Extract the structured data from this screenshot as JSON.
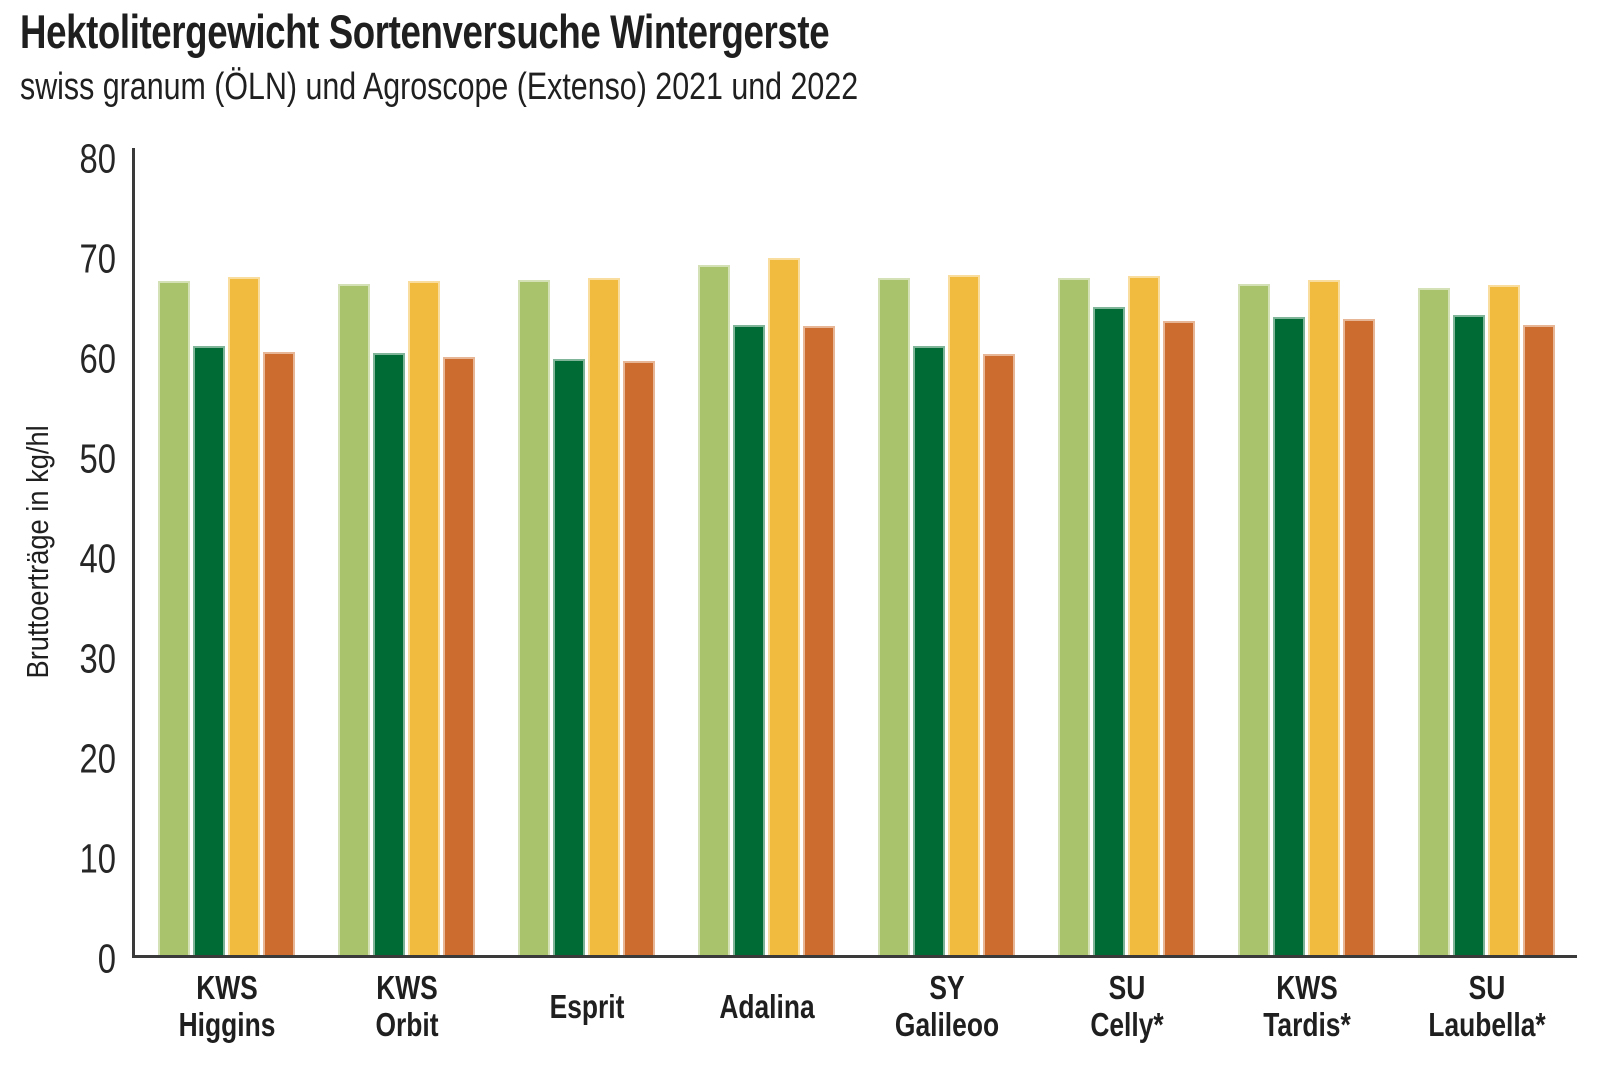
{
  "title": "Hektolitergewicht Sortenversuche Wintergerste",
  "subtitle": "swiss granum (ÖLN) und Agroscope (Extenso) 2021 und 2022",
  "axis_color": "#3a3a3a",
  "text_color": "#1f1f1f",
  "chart_data": {
    "type": "bar",
    "title": "Hektolitergewicht Sortenversuche Wintergerste",
    "subtitle": "swiss granum (ÖLN) und Agroscope (Extenso) 2021 und 2022",
    "xlabel": "",
    "ylabel": "Bruttoerträge in kg/hl",
    "ylim": [
      0,
      80
    ],
    "yticks": [
      0,
      10,
      20,
      30,
      40,
      50,
      60,
      70,
      80
    ],
    "grid": false,
    "legend_visible": false,
    "categories": [
      "KWS Higgins",
      "KWS Orbit",
      "Esprit",
      "Adalina",
      "SY Galileoo",
      "SU Celly*",
      "KWS Tardis*",
      "SU Laubella*"
    ],
    "category_label_lines": [
      [
        "KWS",
        "Higgins"
      ],
      [
        "KWS",
        "Orbit"
      ],
      [
        "Esprit"
      ],
      [
        "Adalina"
      ],
      [
        "SY",
        "Galileoo"
      ],
      [
        "SU",
        "Celly*"
      ],
      [
        "KWS",
        "Tardis*"
      ],
      [
        "SU",
        "Laubella*"
      ]
    ],
    "series": [
      {
        "name": "light-green",
        "color": "#a9c36c",
        "values": [
          67.4,
          67.1,
          67.5,
          69.0,
          67.7,
          67.7,
          67.1,
          66.7
        ]
      },
      {
        "name": "dark-green",
        "color": "#006b35",
        "values": [
          60.9,
          60.2,
          59.6,
          63.0,
          60.9,
          64.8,
          63.8,
          64.0
        ]
      },
      {
        "name": "yellow",
        "color": "#f0bb3f",
        "values": [
          67.8,
          67.4,
          67.7,
          69.7,
          68.0,
          67.9,
          67.5,
          67.0
        ]
      },
      {
        "name": "orange",
        "color": "#cd6c2f",
        "values": [
          60.3,
          59.8,
          59.4,
          62.9,
          60.1,
          63.4,
          63.6,
          63.0
        ]
      }
    ]
  }
}
